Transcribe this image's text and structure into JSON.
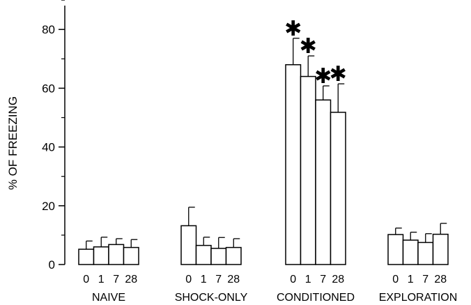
{
  "chart_data": {
    "type": "bar",
    "title": "",
    "xlabel": "",
    "ylabel": "% OF FREEZING",
    "ylim": [
      0,
      90
    ],
    "yticks": [
      0,
      20,
      40,
      60,
      80
    ],
    "grid": false,
    "legend": "none",
    "bar_fill": "#ffffff",
    "bar_stroke": "#000000",
    "groups": [
      {
        "name": "NAIVE",
        "bars": [
          {
            "label": "0",
            "value": 5.2,
            "error": 2.8,
            "significant": false
          },
          {
            "label": "1",
            "value": 6.0,
            "error": 3.3,
            "significant": false
          },
          {
            "label": "7",
            "value": 6.8,
            "error": 2.0,
            "significant": false
          },
          {
            "label": "28",
            "value": 5.8,
            "error": 2.7,
            "significant": false
          }
        ]
      },
      {
        "name": "SHOCK-ONLY",
        "bars": [
          {
            "label": "0",
            "value": 13.2,
            "error": 6.3,
            "significant": false
          },
          {
            "label": "1",
            "value": 6.5,
            "error": 2.8,
            "significant": false
          },
          {
            "label": "7",
            "value": 5.5,
            "error": 3.7,
            "significant": false
          },
          {
            "label": "28",
            "value": 5.8,
            "error": 3.0,
            "significant": false
          }
        ]
      },
      {
        "name": "CONDITIONED",
        "bars": [
          {
            "label": "0",
            "value": 68.0,
            "error": 9.0,
            "significant": true
          },
          {
            "label": "1",
            "value": 64.0,
            "error": 7.0,
            "significant": true
          },
          {
            "label": "7",
            "value": 56.0,
            "error": 4.8,
            "significant": true
          },
          {
            "label": "28",
            "value": 51.8,
            "error": 9.7,
            "significant": true
          }
        ]
      },
      {
        "name": "EXPLORATION",
        "bars": [
          {
            "label": "0",
            "value": 10.2,
            "error": 2.2,
            "significant": false
          },
          {
            "label": "1",
            "value": 8.3,
            "error": 2.7,
            "significant": false
          },
          {
            "label": "7",
            "value": 7.5,
            "error": 3.0,
            "significant": false
          },
          {
            "label": "28",
            "value": 10.3,
            "error": 3.7,
            "significant": false
          }
        ]
      }
    ],
    "significance_marker": "✱"
  }
}
